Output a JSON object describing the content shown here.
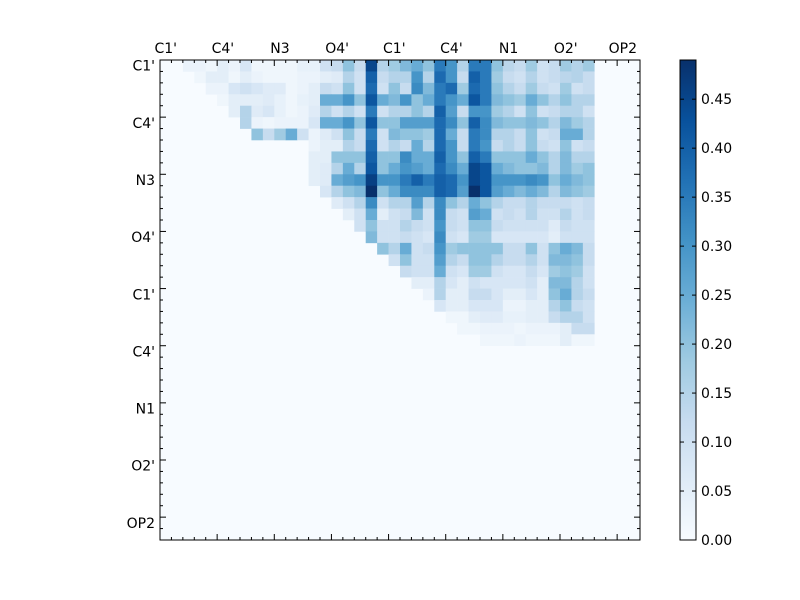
{
  "chart_data": {
    "type": "heatmap",
    "n": 42,
    "x_ticklabels": [
      "C1'",
      "C4'",
      "N3",
      "O4'",
      "C1'",
      "C4'",
      "N1",
      "O2'",
      "OP2"
    ],
    "y_ticklabels": [
      "C1'",
      "C4'",
      "N3",
      "O4'",
      "C1'",
      "C4'",
      "N1",
      "O2'",
      "OP2"
    ],
    "colorbar": {
      "vmin": 0.0,
      "vmax": 0.49,
      "ticks": [
        "0.00",
        "0.05",
        "0.10",
        "0.15",
        "0.20",
        "0.25",
        "0.30",
        "0.35",
        "0.40",
        "0.45"
      ],
      "colormap": [
        "#f7fbff",
        "#deebf7",
        "#c6dbef",
        "#9ecae1",
        "#6baed6",
        "#4292c6",
        "#2171b5",
        "#08519c",
        "#08306b"
      ]
    },
    "rows": [
      "0 0 0.03 0.03 0.02 0.05 0.03 0.08 0.02 0.02 0.02 0.02 0.04 0.04 0.1 0.12 0.2 0.12 0.45 0.15 0.18 0.22 0.25 0.2 0.35 0.3 0.15 0.35 0.35 0.2 0.14 0.12 0.18 0.1 0.12 0.18 0.15 0.18",
      "0 0 0 0.02 0.05 0.05 0.02 0.05 0.03 0.02 0.02 0.02 0.03 0.03 0.05 0.06 0.15 0.1 0.4 0.12 0.15 0.15 0.3 0.15 0.38 0.3 0.12 0.4 0.35 0.18 0.12 0.1 0.15 0.1 0.12 0.14 0.15 0.12",
      "0 0 0 0 0.03 0.03 0.08 0.1 0.08 0.06 0.06 0.02 0.03 0.05 0.12 0.1 0.2 0.1 0.38 0.1 0.2 0.12 0.32 0.22 0.35 0.38 0.18 0.38 0.35 0.2 0.15 0.12 0.18 0.12 0.1 0.18 0.1 0.12",
      "0 0 0 0 0 0.02 0.05 0.05 0.05 0.06 0.04 0.02 0.04 0.05 0.25 0.25 0.3 0.2 0.42 0.25 0.22 0.3 0.2 0.25 0.35 0.3 0.25 0.42 0.35 0.22 0.2 0.18 0.25 0.2 0.15 0.2 0.15 0.15",
      "0 0 0 0 0 0 0.05 0.15 0.06 0.08 0.04 0.02 0.03 0.06 0.15 0.1 0.15 0.1 0.35 0.1 0.15 0.15 0.2 0.15 0.4 0.28 0.12 0.3 0.3 0.18 0.15 0.1 0.2 0.1 0.12 0.15 0.15 0.1",
      "0 0 0 0 0 0 0 0.15 0.03 0.02 0.03 0.03 0.03 0.08 0.25 0.25 0.3 0.2 0.42 0.2 0.2 0.28 0.28 0.28 0.38 0.32 0.2 0.4 0.32 0.22 0.2 0.2 0.22 0.2 0.15 0.22 0.18 0.15",
      "0 0 0 0 0 0 0 0 0.2 0.12 0.18 0.25 0.1 0.03 0.06 0.1 0.2 0.12 0.35 0.1 0.22 0.2 0.2 0.18 0.38 0.25 0.12 0.35 0.32 0.15 0.15 0.12 0.2 0.1 0.12 0.25 0.25 0.15",
      "0 0 0 0 0 0 0 0 0 0 0 0 0 0.03 0.05 0.05 0.15 0.12 0.38 0.1 0.15 0.12 0.25 0.15 0.38 0.3 0.12 0.35 0.3 0.12 0.15 0.12 0.2 0.12 0.1 0.2 0.1 0.12",
      "0 0 0 0 0 0 0 0 0 0 0 0 0 0.05 0.05 0.2 0.2 0.2 0.4 0.2 0.2 0.32 0.25 0.25 0.4 0.3 0.2 0.4 0.35 0.2 0.2 0.2 0.25 0.2 0.15 0.22 0.15 0.15",
      "0 0 0 0 0 0 0 0 0 0 0 0 0 0.05 0.06 0.15 0.25 0.15 0.42 0.2 0.25 0.3 0.28 0.25 0.38 0.32 0.25 0.45 0.42 0.25 0.22 0.2 0.2 0.22 0.15 0.22 0.18 0.2",
      "0 0 0 0 0 0 0 0 0 0 0 0 0 0.05 0.06 0.25 0.28 0.3 0.46 0.3 0.3 0.35 0.4 0.35 0.4 0.38 0.3 0.45 0.42 0.3 0.3 0.3 0.32 0.3 0.2 0.25 0.22 0.2",
      "0 0 0 0 0 0 0 0 0 0 0 0 0 0 0.08 0.15 0.2 0.22 0.49 0.2 0.25 0.32 0.32 0.32 0.4 0.38 0.28 0.49 0.42 0.28 0.25 0.22 0.25 0.22 0.15 0.22 0.2 0.18",
      "0 0 0 0 0 0 0 0 0 0 0 0 0 0 0 0.06 0.1 0.15 0.32 0.1 0.15 0.15 0.28 0.15 0.32 0.2 0.15 0.25 0.2 0.15 0.12 0.12 0.15 0.12 0.12 0.12 0.1 0.12",
      "0 0 0 0 0 0 0 0 0 0 0 0 0 0 0 0 0.05 0.1 0.25 0.05 0.1 0.12 0.22 0.1 0.32 0.12 0.1 0.28 0.25 0.1 0.12 0.1 0.15 0.1 0.1 0.15 0.1 0.12",
      "0 0 0 0 0 0 0 0 0 0 0 0 0 0 0 0 0 0.1 0.2 0.1 0.1 0.15 0.12 0.1 0.3 0.12 0.1 0.2 0.2 0.12 0.1 0.1 0.1 0.1 0.06 0.12 0.1 0.1",
      "0 0 0 0 0 0 0 0 0 0 0 0 0 0 0 0 0 0 0.22 0.1 0.1 0.12 0.1 0.08 0.32 0.1 0.08 0.18 0.18 0.08 0.08 0.08 0.08 0.08 0.05 0.1 0.1 0.1",
      "0 0 0 0 0 0 0 0 0 0 0 0 0 0 0 0 0 0 0 0.2 0.15 0.25 0.1 0.12 0.3 0.18 0.2 0.2 0.2 0.2 0.12 0.12 0.2 0.1 0.2 0.25 0.22 0.12",
      "0 0 0 0 0 0 0 0 0 0 0 0 0 0 0 0 0 0 0 0 0.1 0.2 0.1 0.1 0.28 0.15 0.12 0.2 0.2 0.15 0.12 0.12 0.15 0.1 0.22 0.22 0.2 0.12",
      "0 0 0 0 0 0 0 0 0 0 0 0 0 0 0 0 0 0 0 0 0 0.12 0.1 0.1 0.25 0.1 0.08 0.18 0.18 0.1 0.08 0.08 0.12 0.08 0.18 0.2 0.18 0.1",
      "0 0 0 0 0 0 0 0 0 0 0 0 0 0 0 0 0 0 0 0 0 0 0.05 0.05 0.15 0.08 0.05 0.1 0.08 0.08 0.08 0.08 0.1 0.05 0.22 0.22 0.15 0.1",
      "0 0 0 0 0 0 0 0 0 0 0 0 0 0 0 0 0 0 0 0 0 0 0 0.03 0.15 0.05 0.05 0.12 0.12 0.08 0.05 0.05 0.08 0.05 0.2 0.25 0.15 0.12",
      "0 0 0 0 0 0 0 0 0 0 0 0 0 0 0 0 0 0 0 0 0 0 0 0 0.08 0.05 0.05 0.08 0.08 0.08 0.03 0.03 0.05 0.05 0.15 0.2 0.12 0.1",
      "0 0 0 0 0 0 0 0 0 0 0 0 0 0 0 0 0 0 0 0 0 0 0 0 0 0.02 0.02 0.05 0.06 0.06 0.04 0.04 0.05 0.05 0.12 0.15 0.15 0.1",
      "0 0 0 0 0 0 0 0 0 0 0 0 0 0 0 0 0 0 0 0 0 0 0 0 0 0 0.02 0.02 0.03 0.03 0.03 0.02 0.03 0.03 0.03 0.05 0.12 0.12",
      "0 0 0 0 0 0 0 0 0 0 0 0 0 0 0 0 0 0 0 0 0 0 0 0 0 0 0 0 0.02 0.02 0.02 0.03 0.02 0.02 0.02 0.05 0.02 0.02"
    ]
  }
}
